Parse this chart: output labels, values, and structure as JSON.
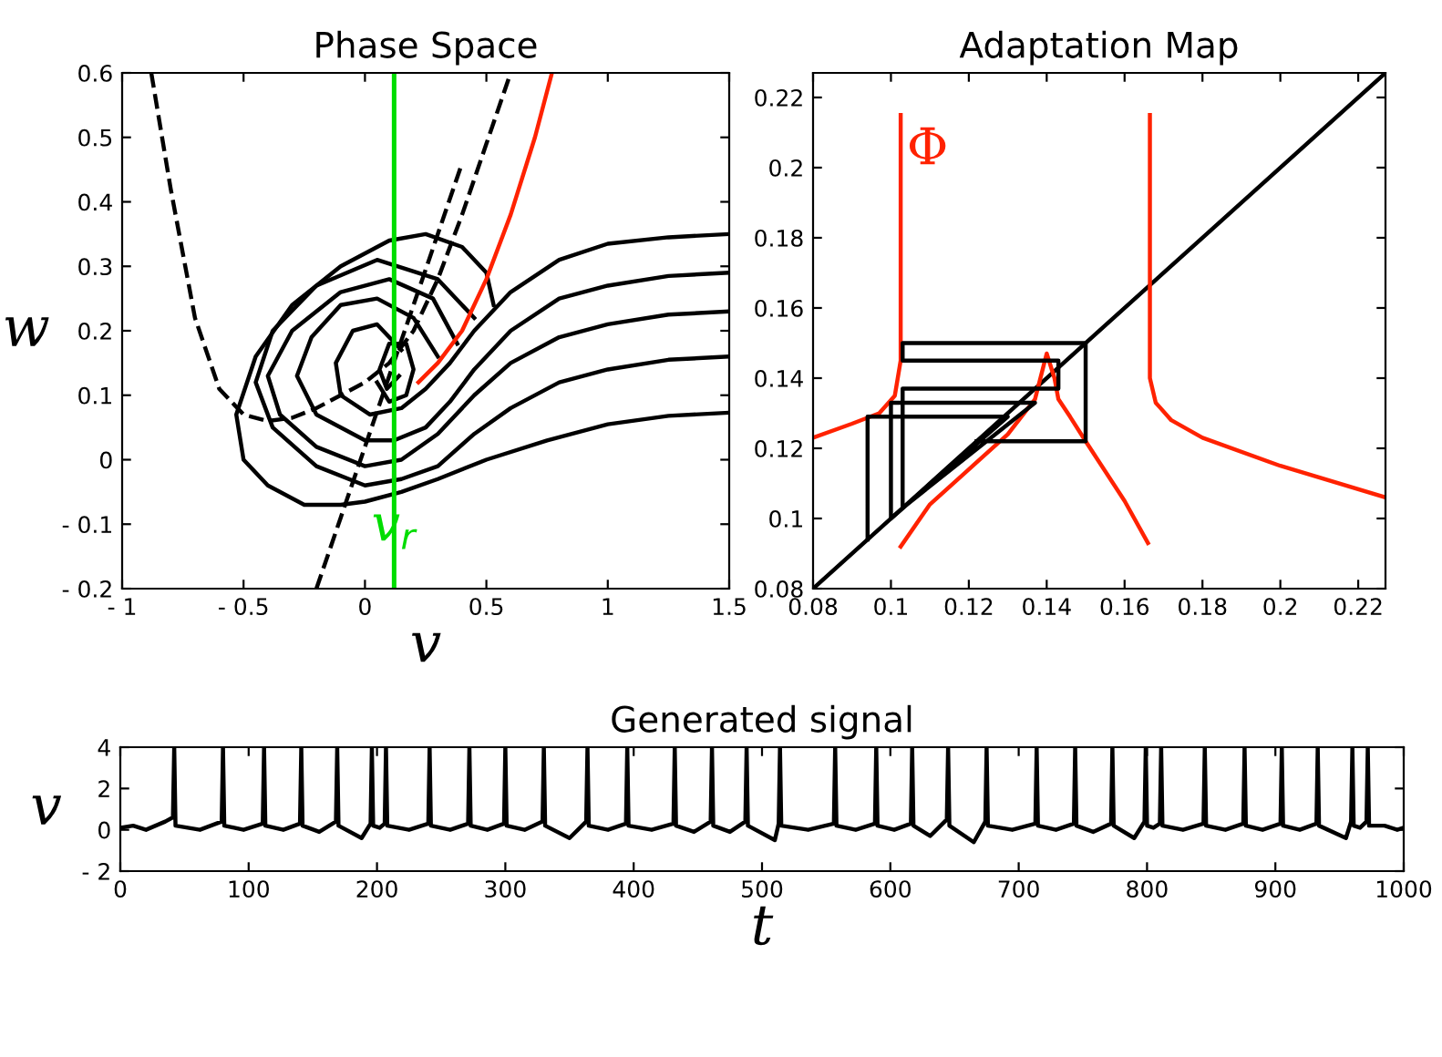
{
  "chart_data": [
    {
      "type": "line",
      "title": "Phase Space",
      "xlabel": "v",
      "ylabel": "w",
      "xlim": [
        -1,
        1.5
      ],
      "ylim": [
        -0.2,
        0.6
      ],
      "xticks": [
        {
          "value": -1,
          "label": "- 1"
        },
        {
          "value": -0.5,
          "label": "- 0.5"
        },
        0,
        0.5,
        1,
        1.5
      ],
      "yticks": [
        {
          "value": -0.2,
          "label": "- 0.2"
        },
        {
          "value": -0.1,
          "label": "- 0.1"
        },
        0,
        0.1,
        0.2,
        0.3,
        0.4,
        0.5,
        0.6
      ],
      "ref_lines": [
        {
          "axis": "x",
          "value": 0.12,
          "label": "v$_{r}$",
          "color": "#00dd00"
        }
      ],
      "series": [
        {
          "color": "#000000",
          "line_style": "dashed",
          "x": [
            -0.88,
            -0.8,
            -0.7,
            -0.6,
            -0.5,
            -0.4,
            -0.3,
            -0.2,
            -0.1,
            0.0,
            0.1,
            0.2,
            0.3,
            0.4,
            0.5,
            0.6
          ],
          "values": [
            0.6,
            0.42,
            0.22,
            0.11,
            0.07,
            0.06,
            0.065,
            0.08,
            0.1,
            0.12,
            0.15,
            0.2,
            0.28,
            0.38,
            0.49,
            0.6
          ]
        },
        {
          "color": "#000000",
          "line_style": "dashed",
          "x": [
            -0.2,
            -0.1,
            0.0,
            0.1,
            0.2,
            0.3,
            0.4
          ],
          "values": [
            -0.2,
            -0.09,
            0.02,
            0.13,
            0.24,
            0.35,
            0.46
          ]
        },
        {
          "color": "#000000",
          "line_style": "solid",
          "x": [
            0.53,
            0.5,
            0.4,
            0.25,
            0.1,
            -0.1,
            -0.3,
            -0.45,
            -0.53,
            -0.5,
            -0.4,
            -0.25,
            -0.1,
            0.0,
            0.15,
            0.3,
            0.5,
            0.75,
            1.0,
            1.25,
            1.5
          ],
          "values": [
            0.24,
            0.29,
            0.33,
            0.35,
            0.34,
            0.3,
            0.24,
            0.16,
            0.07,
            0.0,
            -0.04,
            -0.07,
            -0.07,
            -0.065,
            -0.05,
            -0.03,
            0.0,
            0.03,
            0.055,
            0.068,
            0.073
          ]
        },
        {
          "color": "#000000",
          "line_style": "solid",
          "x": [
            1.5,
            1.25,
            1.0,
            0.8,
            0.6,
            0.45,
            0.35,
            0.25,
            0.15,
            0.02,
            -0.1,
            -0.12,
            -0.05,
            0.05,
            0.15
          ],
          "values": [
            0.35,
            0.345,
            0.335,
            0.31,
            0.26,
            0.2,
            0.15,
            0.11,
            0.08,
            0.07,
            0.1,
            0.15,
            0.2,
            0.21,
            0.17
          ]
        },
        {
          "color": "#000000",
          "line_style": "solid",
          "x": [
            1.5,
            1.25,
            1.0,
            0.8,
            0.6,
            0.45,
            0.35,
            0.25,
            0.12,
            0.0,
            -0.2,
            -0.28,
            -0.22,
            -0.1,
            0.05,
            0.2,
            0.3
          ],
          "values": [
            0.29,
            0.285,
            0.27,
            0.25,
            0.2,
            0.14,
            0.09,
            0.05,
            0.03,
            0.03,
            0.07,
            0.13,
            0.19,
            0.24,
            0.25,
            0.22,
            0.16
          ]
        },
        {
          "color": "#000000",
          "line_style": "solid",
          "x": [
            1.5,
            1.25,
            1.0,
            0.8,
            0.6,
            0.45,
            0.3,
            0.15,
            0.0,
            -0.2,
            -0.35,
            -0.4,
            -0.3,
            -0.1,
            0.1,
            0.28,
            0.38
          ],
          "values": [
            0.23,
            0.225,
            0.21,
            0.19,
            0.15,
            0.1,
            0.04,
            0.0,
            -0.01,
            0.02,
            0.07,
            0.13,
            0.2,
            0.26,
            0.28,
            0.25,
            0.18
          ]
        },
        {
          "color": "#000000",
          "line_style": "solid",
          "x": [
            1.5,
            1.25,
            1.0,
            0.8,
            0.6,
            0.45,
            0.3,
            0.15,
            0.0,
            -0.2,
            -0.38,
            -0.45,
            -0.38,
            -0.2,
            0.05,
            0.3,
            0.45
          ],
          "values": [
            0.16,
            0.155,
            0.14,
            0.12,
            0.08,
            0.04,
            -0.01,
            -0.03,
            -0.04,
            -0.01,
            0.05,
            0.12,
            0.2,
            0.27,
            0.31,
            0.28,
            0.22
          ]
        },
        {
          "color": "#000000",
          "line_style": "solid",
          "x": [
            0.05,
            0.1,
            0.17,
            0.2,
            0.17,
            0.1,
            0.06,
            0.09,
            0.14
          ],
          "values": [
            0.12,
            0.09,
            0.1,
            0.14,
            0.18,
            0.18,
            0.14,
            0.11,
            0.13
          ]
        },
        {
          "color": "#ff2200",
          "line_style": "solid",
          "x": [
            0.22,
            0.3,
            0.4,
            0.5,
            0.6,
            0.7,
            0.77
          ],
          "values": [
            0.12,
            0.15,
            0.2,
            0.28,
            0.38,
            0.5,
            0.6
          ]
        }
      ]
    },
    {
      "type": "line",
      "title": "Adaptation Map",
      "xlim": [
        0.08,
        0.227
      ],
      "ylim": [
        0.08,
        0.227
      ],
      "xticks": [
        0.08,
        0.1,
        0.12,
        0.14,
        0.16,
        0.18,
        0.2,
        0.22
      ],
      "yticks": [
        0.08,
        0.1,
        0.12,
        0.14,
        0.16,
        0.18,
        0.2,
        0.22
      ],
      "annotations": [
        "Φ"
      ],
      "series": [
        {
          "color": "#000000",
          "line_style": "solid",
          "x": [
            0.08,
            0.227
          ],
          "values": [
            0.08,
            0.227
          ]
        },
        {
          "color": "#ff2200",
          "line_style": "solid",
          "x": [
            0.08,
            0.09,
            0.097,
            0.101,
            0.1025,
            0.1025
          ],
          "values": [
            0.123,
            0.127,
            0.13,
            0.135,
            0.145,
            0.215
          ]
        },
        {
          "color": "#ff2200",
          "line_style": "solid",
          "x": [
            0.1025,
            0.11,
            0.12,
            0.13,
            0.137,
            0.14,
            0.142,
            0.143,
            0.146,
            0.15,
            0.16,
            0.166
          ],
          "values": [
            0.092,
            0.104,
            0.114,
            0.124,
            0.134,
            0.147,
            0.14,
            0.134,
            0.129,
            0.122,
            0.105,
            0.093
          ]
        },
        {
          "color": "#ff2200",
          "line_style": "solid",
          "x": [
            0.1665,
            0.1665,
            0.168,
            0.172,
            0.18,
            0.2,
            0.227
          ],
          "values": [
            0.215,
            0.14,
            0.133,
            0.128,
            0.123,
            0.115,
            0.106
          ]
        },
        {
          "color": "#000000",
          "line_style": "solid",
          "x": [
            0.094,
            0.094,
            0.13,
            0.1,
            0.1,
            0.137,
            0.103,
            0.103,
            0.143,
            0.143,
            0.103,
            0.103,
            0.15,
            0.15,
            0.122
          ],
          "values": [
            0.094,
            0.129,
            0.129,
            0.1,
            0.133,
            0.133,
            0.103,
            0.137,
            0.137,
            0.145,
            0.145,
            0.15,
            0.15,
            0.122,
            0.122
          ]
        }
      ]
    },
    {
      "type": "line",
      "title": "Generated signal",
      "xlabel": "t",
      "ylabel": "v",
      "xlim": [
        0,
        1000
      ],
      "ylim": [
        -2,
        4
      ],
      "xticks": [
        0,
        100,
        200,
        300,
        400,
        500,
        600,
        700,
        800,
        900,
        1000
      ],
      "yticks": [
        {
          "value": -2,
          "label": "- 2"
        },
        0,
        2,
        4
      ],
      "series": [
        {
          "color": "#000000",
          "line_style": "solid",
          "x": [
            0,
            10,
            20,
            35,
            41,
            42,
            43,
            62,
            79,
            80,
            81,
            96,
            111,
            112,
            113,
            127,
            140,
            141,
            142,
            155,
            168,
            169,
            170,
            188,
            195,
            196,
            197,
            202,
            206,
            207,
            208,
            225,
            240,
            241,
            242,
            257,
            271,
            272,
            273,
            286,
            299,
            300,
            301,
            315,
            329,
            330,
            331,
            350,
            363,
            364,
            365,
            380,
            394,
            395,
            396,
            414,
            431,
            432,
            433,
            447,
            460,
            461,
            462,
            475,
            487,
            488,
            489,
            510,
            513,
            514,
            515,
            536,
            556,
            557,
            558,
            573,
            588,
            589,
            590,
            603,
            616,
            617,
            618,
            631,
            644,
            645,
            646,
            665,
            674,
            675,
            676,
            695,
            713,
            714,
            715,
            729,
            743,
            744,
            745,
            758,
            772,
            773,
            774,
            790,
            798,
            799,
            800,
            805,
            810,
            811,
            812,
            828,
            844,
            845,
            846,
            861,
            875,
            876,
            877,
            890,
            904,
            905,
            906,
            919,
            932,
            933,
            934,
            955,
            959,
            960,
            961,
            966,
            971,
            972,
            973,
            985,
            995,
            1000
          ],
          "values": [
            0.1,
            0.2,
            0.0,
            0.4,
            0.6,
            4,
            0.2,
            0.0,
            0.4,
            4,
            0.2,
            0.0,
            0.3,
            4,
            0.2,
            0.0,
            0.3,
            4,
            0.2,
            -0.1,
            0.4,
            4,
            0.2,
            -0.4,
            0.3,
            4,
            0.2,
            0.1,
            0.3,
            4,
            0.2,
            0.0,
            0.3,
            4,
            0.2,
            0.0,
            0.3,
            4,
            0.2,
            0.0,
            0.3,
            4,
            0.2,
            0.0,
            0.4,
            4,
            0.2,
            -0.4,
            0.4,
            4,
            0.2,
            0.0,
            0.3,
            4,
            0.2,
            0.0,
            0.3,
            4,
            0.2,
            -0.1,
            0.4,
            4,
            0.2,
            -0.1,
            0.4,
            4,
            0.2,
            -0.5,
            0.3,
            4,
            0.2,
            0.0,
            0.3,
            4,
            0.2,
            0.0,
            0.3,
            4,
            0.2,
            0.0,
            0.3,
            4,
            0.2,
            -0.3,
            0.5,
            4,
            0.2,
            -0.6,
            0.4,
            4,
            0.2,
            0.0,
            0.3,
            4,
            0.2,
            0.0,
            0.3,
            4,
            0.2,
            -0.1,
            0.3,
            4,
            0.2,
            -0.4,
            0.4,
            4,
            0.2,
            0.1,
            0.3,
            4,
            0.2,
            0.0,
            0.3,
            4,
            0.2,
            0.0,
            0.3,
            4,
            0.2,
            0.0,
            0.3,
            4,
            0.2,
            0.0,
            0.3,
            4,
            0.2,
            -0.4,
            0.4,
            4,
            0.2,
            0.1,
            0.4,
            4,
            0.2,
            0.2,
            0.0,
            0.1
          ]
        }
      ]
    }
  ]
}
